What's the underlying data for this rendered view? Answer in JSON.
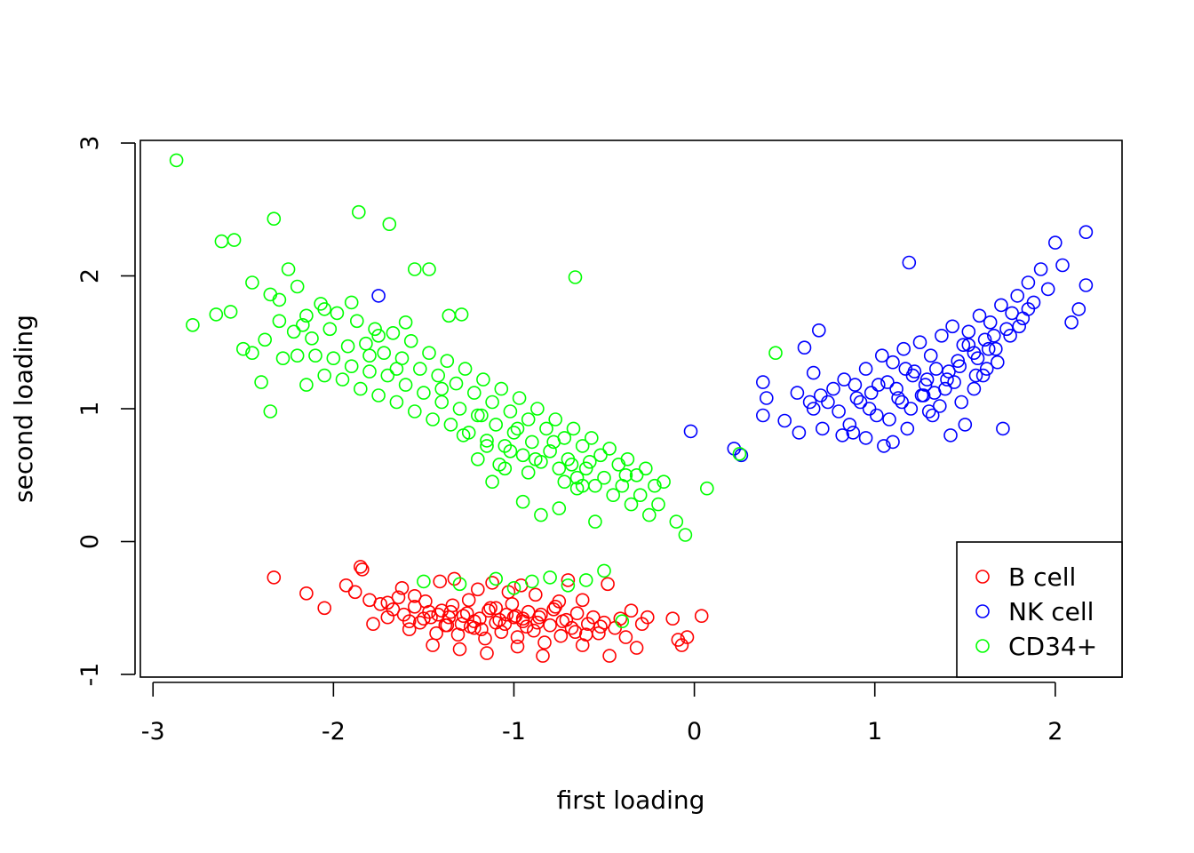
{
  "chart_data": {
    "type": "scatter",
    "title": "",
    "xlabel": "first loading",
    "ylabel": "second loading",
    "xlim": [
      -3.07,
      2.37
    ],
    "ylim": [
      -1.02,
      3.02
    ],
    "x_ticks": [
      -3,
      -2,
      -1,
      0,
      1,
      2
    ],
    "y_ticks": [
      -1,
      0,
      1,
      2,
      3
    ],
    "x_tick_labels": [
      "-3",
      "-2",
      "-1",
      "0",
      "1",
      "2"
    ],
    "y_tick_labels": [
      "-1",
      "0",
      "1",
      "2",
      "3"
    ],
    "marker": "open-circle",
    "grid": false,
    "legend": {
      "position": "bottom-right",
      "entries": [
        {
          "label": "B cell",
          "color": "#ff0000"
        },
        {
          "label": "NK cell",
          "color": "#0000ff"
        },
        {
          "label": "CD34+",
          "color": "#00ff00"
        }
      ]
    },
    "series": [
      {
        "name": "B cell",
        "color": "#ff0000",
        "x": [
          -2.33,
          -2.15,
          -2.05,
          -1.93,
          -1.88,
          -1.85,
          -1.84,
          -1.8,
          -1.78,
          -1.74,
          -1.7,
          -1.67,
          -1.64,
          -1.61,
          -1.58,
          -1.55,
          -1.52,
          -1.49,
          -1.46,
          -1.43,
          -1.4,
          -1.37,
          -1.34,
          -1.31,
          -1.28,
          -1.25,
          -1.22,
          -1.19,
          -1.16,
          -1.13,
          -1.1,
          -1.07,
          -1.04,
          -1.01,
          -0.98,
          -0.95,
          -0.92,
          -0.89,
          -0.86,
          -0.83,
          -0.8,
          -0.77,
          -0.74,
          -0.71,
          -0.68,
          -0.65,
          -0.62,
          -0.59,
          -0.56,
          -0.53,
          -0.5,
          -0.47,
          -0.44,
          -0.41,
          -0.38,
          -0.35,
          -0.32,
          -0.29,
          -0.26,
          -0.12,
          -0.09,
          -0.07,
          -0.04,
          0.04,
          -1.62,
          -1.55,
          -1.41,
          -1.33,
          -1.2,
          -1.12,
          -1.03,
          -0.96,
          -0.88,
          -0.75,
          -0.7,
          -0.62,
          -0.48,
          -1.45,
          -1.3,
          -1.15,
          -0.98,
          -0.84,
          -1.5,
          -1.38,
          -1.26,
          -1.18,
          -1.08,
          -0.93,
          -0.78,
          -0.66,
          -1.7,
          -1.58,
          -1.47,
          -1.36,
          -1.24,
          -1.14,
          -1.05,
          -0.95,
          -0.85,
          -0.73,
          -0.6,
          -0.52,
          -1.42,
          -1.29,
          -1.1,
          -0.99,
          -0.87,
          -1.35,
          -1.22,
          -1.0
        ],
        "y": [
          -0.27,
          -0.39,
          -0.5,
          -0.33,
          -0.38,
          -0.19,
          -0.21,
          -0.44,
          -0.62,
          -0.47,
          -0.57,
          -0.51,
          -0.42,
          -0.55,
          -0.66,
          -0.49,
          -0.61,
          -0.45,
          -0.57,
          -0.69,
          -0.52,
          -0.63,
          -0.48,
          -0.7,
          -0.56,
          -0.44,
          -0.65,
          -0.58,
          -0.73,
          -0.5,
          -0.61,
          -0.68,
          -0.55,
          -0.47,
          -0.72,
          -0.6,
          -0.53,
          -0.67,
          -0.57,
          -0.76,
          -0.63,
          -0.49,
          -0.71,
          -0.59,
          -0.65,
          -0.54,
          -0.78,
          -0.62,
          -0.57,
          -0.69,
          -0.61,
          -0.86,
          -0.65,
          -0.58,
          -0.72,
          -0.52,
          -0.8,
          -0.62,
          -0.57,
          -0.58,
          -0.74,
          -0.78,
          -0.72,
          -0.56,
          -0.35,
          -0.41,
          -0.3,
          -0.28,
          -0.36,
          -0.31,
          -0.38,
          -0.33,
          -0.4,
          -0.45,
          -0.29,
          -0.44,
          -0.32,
          -0.78,
          -0.81,
          -0.84,
          -0.79,
          -0.86,
          -0.58,
          -0.63,
          -0.54,
          -0.66,
          -0.59,
          -0.64,
          -0.51,
          -0.68,
          -0.46,
          -0.6,
          -0.53,
          -0.57,
          -0.64,
          -0.52,
          -0.62,
          -0.58,
          -0.55,
          -0.6,
          -0.7,
          -0.64,
          -0.55,
          -0.62,
          -0.5,
          -0.56,
          -0.61,
          -0.53,
          -0.6,
          -0.57
        ]
      },
      {
        "name": "NK cell",
        "color": "#0000ff",
        "x": [
          -1.75,
          -0.02,
          0.22,
          0.26,
          0.38,
          0.38,
          0.4,
          0.5,
          0.57,
          0.58,
          0.61,
          0.64,
          0.66,
          0.66,
          0.69,
          0.7,
          0.71,
          0.74,
          0.77,
          0.8,
          0.83,
          0.86,
          0.89,
          0.92,
          0.95,
          0.98,
          1.01,
          1.04,
          1.07,
          1.1,
          1.13,
          1.16,
          1.18,
          1.19,
          1.22,
          1.25,
          1.28,
          1.31,
          1.34,
          1.37,
          1.4,
          1.43,
          1.46,
          1.49,
          1.52,
          1.55,
          1.58,
          1.61,
          1.64,
          1.67,
          1.7,
          1.73,
          1.76,
          1.79,
          1.82,
          1.85,
          1.88,
          1.92,
          1.96,
          2.0,
          2.04,
          2.09,
          2.13,
          2.17,
          2.17,
          1.71,
          1.5,
          1.42,
          1.32,
          1.1,
          1.05,
          0.95,
          0.88,
          0.82,
          1.6,
          1.55,
          1.48,
          1.36,
          1.3,
          1.26,
          1.2,
          1.15,
          1.08,
          1.02,
          0.97,
          0.9,
          1.75,
          1.68,
          1.62,
          1.56,
          1.44,
          1.39,
          1.33,
          1.27,
          1.21,
          1.12,
          1.63,
          1.57,
          1.47,
          1.41,
          1.29,
          1.17,
          1.85,
          1.8,
          1.66,
          1.52
        ],
        "y": [
          1.85,
          0.83,
          0.7,
          0.65,
          0.95,
          1.2,
          1.08,
          0.91,
          1.12,
          0.82,
          1.46,
          1.05,
          1.27,
          1.0,
          1.59,
          1.1,
          0.85,
          1.05,
          1.15,
          0.98,
          1.22,
          0.88,
          1.18,
          1.05,
          1.3,
          1.12,
          0.95,
          1.4,
          1.2,
          1.35,
          1.08,
          1.45,
          0.85,
          2.1,
          1.28,
          1.5,
          1.18,
          1.4,
          1.3,
          1.55,
          1.22,
          1.62,
          1.36,
          1.48,
          1.58,
          1.42,
          1.7,
          1.52,
          1.65,
          1.45,
          1.78,
          1.6,
          1.72,
          1.85,
          1.68,
          1.95,
          1.8,
          2.05,
          1.9,
          2.25,
          2.08,
          1.65,
          1.75,
          1.93,
          2.33,
          0.85,
          0.88,
          0.8,
          0.95,
          0.75,
          0.72,
          0.78,
          0.82,
          0.8,
          1.25,
          1.15,
          1.05,
          1.02,
          0.98,
          1.1,
          1.0,
          1.05,
          0.92,
          1.18,
          1.0,
          1.08,
          1.55,
          1.35,
          1.3,
          1.25,
          1.2,
          1.15,
          1.12,
          1.1,
          1.25,
          1.15,
          1.45,
          1.38,
          1.32,
          1.28,
          1.22,
          1.3,
          1.75,
          1.62,
          1.55,
          1.48
        ]
      },
      {
        "name": "CD34+",
        "color": "#00ff00",
        "x": [
          -2.87,
          -2.78,
          -2.65,
          -2.62,
          -2.57,
          -2.55,
          -2.5,
          -2.45,
          -2.4,
          -2.38,
          -2.35,
          -2.33,
          -2.3,
          -2.28,
          -2.25,
          -2.22,
          -2.2,
          -2.17,
          -2.15,
          -2.12,
          -2.1,
          -2.07,
          -2.05,
          -2.02,
          -2.0,
          -1.98,
          -1.95,
          -1.92,
          -1.9,
          -1.87,
          -1.85,
          -1.82,
          -1.8,
          -1.77,
          -1.75,
          -1.72,
          -1.7,
          -1.67,
          -1.65,
          -1.62,
          -1.6,
          -1.57,
          -1.55,
          -1.52,
          -1.5,
          -1.47,
          -1.45,
          -1.42,
          -1.4,
          -1.37,
          -1.35,
          -1.32,
          -1.3,
          -1.27,
          -1.25,
          -1.22,
          -1.2,
          -1.17,
          -1.15,
          -1.12,
          -1.1,
          -1.07,
          -1.05,
          -1.02,
          -1.0,
          -0.97,
          -0.95,
          -0.92,
          -0.9,
          -0.87,
          -0.85,
          -0.82,
          -0.8,
          -0.77,
          -0.75,
          -0.72,
          -0.7,
          -0.67,
          -0.65,
          -0.62,
          -0.6,
          -0.57,
          -0.55,
          -0.52,
          -0.5,
          -0.47,
          -0.45,
          -0.42,
          -0.4,
          -0.37,
          -0.35,
          -0.32,
          -0.3,
          -0.27,
          -0.25,
          -0.22,
          -0.2,
          -0.17,
          -0.1,
          -0.05,
          0.07,
          0.25,
          0.45,
          -1.86,
          -1.69,
          -1.55,
          -1.47,
          -1.36,
          -1.29,
          -0.66,
          -1.12,
          -1.05,
          -0.95,
          -0.85,
          -0.75,
          -0.65,
          -0.55,
          -1.5,
          -1.3,
          -1.1,
          -1.0,
          -0.9,
          -0.8,
          -0.7,
          -0.6,
          -0.5,
          -0.4,
          -2.35,
          -2.2,
          -2.05,
          -1.9,
          -1.75,
          -1.6,
          -2.45,
          -2.3,
          -2.15,
          -1.8,
          -1.65,
          -1.4,
          -1.18,
          -0.98,
          -0.78,
          -0.58,
          -0.38,
          -1.2,
          -1.08,
          -0.92,
          -0.72,
          -0.62,
          -1.28,
          -1.15,
          -1.02,
          -0.88,
          -0.68
        ],
        "y": [
          2.87,
          1.63,
          1.71,
          2.26,
          1.73,
          2.27,
          1.45,
          1.42,
          1.2,
          1.52,
          0.98,
          2.43,
          1.66,
          1.38,
          2.05,
          1.58,
          1.4,
          1.63,
          1.18,
          1.53,
          1.4,
          1.79,
          1.25,
          1.6,
          1.38,
          1.72,
          1.22,
          1.47,
          1.32,
          1.66,
          1.15,
          1.49,
          1.28,
          1.6,
          1.1,
          1.42,
          1.25,
          1.57,
          1.05,
          1.38,
          1.18,
          1.51,
          0.98,
          1.3,
          1.12,
          1.42,
          0.92,
          1.25,
          1.05,
          1.36,
          0.88,
          1.19,
          1.0,
          1.3,
          0.82,
          1.12,
          0.95,
          1.22,
          0.76,
          1.05,
          0.88,
          1.15,
          0.72,
          0.98,
          0.82,
          1.08,
          0.65,
          0.92,
          0.75,
          1.0,
          0.6,
          0.85,
          0.68,
          0.92,
          0.55,
          0.78,
          0.62,
          0.85,
          0.48,
          0.72,
          0.55,
          0.78,
          0.42,
          0.65,
          0.48,
          0.7,
          0.35,
          0.58,
          0.42,
          0.62,
          0.28,
          0.5,
          0.35,
          0.55,
          0.2,
          0.42,
          0.28,
          0.45,
          0.15,
          0.05,
          0.4,
          0.66,
          1.42,
          2.48,
          2.39,
          2.05,
          2.05,
          1.7,
          1.71,
          1.99,
          0.45,
          0.55,
          0.3,
          0.2,
          0.25,
          0.4,
          0.15,
          -0.3,
          -0.32,
          -0.28,
          -0.35,
          -0.3,
          -0.27,
          -0.33,
          -0.29,
          -0.22,
          -0.6,
          1.86,
          1.92,
          1.75,
          1.8,
          1.55,
          1.65,
          1.95,
          1.82,
          1.7,
          1.4,
          1.3,
          1.15,
          0.95,
          0.85,
          0.75,
          0.6,
          0.5,
          0.62,
          0.58,
          0.52,
          0.45,
          0.42,
          0.8,
          0.72,
          0.68,
          0.62,
          0.58
        ]
      }
    ]
  }
}
